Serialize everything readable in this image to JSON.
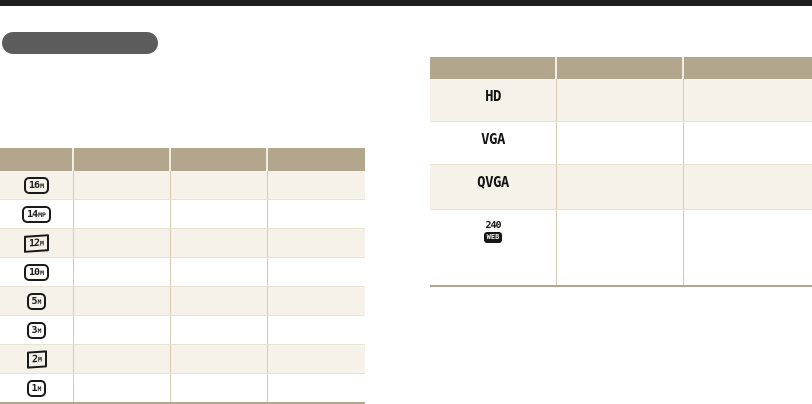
{
  "page": {
    "kind": "camera-manual-resolution-page"
  },
  "colors": {
    "top_rule": "#1f1f1f",
    "redacted_pill": "#5c5c5c",
    "table_header_tan": "#b2a78c",
    "row_cream": "#f6f2ea",
    "row_white": "#ffffff",
    "table_bottom_border": "#b2a78c",
    "icon_ink": "#1a1a1a"
  },
  "photo_table": {
    "headers": [
      "",
      "",
      "",
      ""
    ],
    "rows": [
      {
        "icon": "16M",
        "number": "16",
        "suffix": "M",
        "cells": [
          "",
          "",
          ""
        ]
      },
      {
        "icon": "14MP",
        "number": "14",
        "suffix": "MP",
        "cells": [
          "",
          "",
          ""
        ]
      },
      {
        "icon": "12M-wide",
        "number": "12",
        "suffix": "M",
        "cells": [
          "",
          "",
          ""
        ]
      },
      {
        "icon": "10M",
        "number": "10",
        "suffix": "M",
        "cells": [
          "",
          "",
          ""
        ]
      },
      {
        "icon": "5M",
        "number": "5",
        "suffix": "M",
        "cells": [
          "",
          "",
          ""
        ]
      },
      {
        "icon": "3M",
        "number": "3",
        "suffix": "M",
        "cells": [
          "",
          "",
          ""
        ]
      },
      {
        "icon": "2M-wide",
        "number": "2",
        "suffix": "M",
        "cells": [
          "",
          "",
          ""
        ]
      },
      {
        "icon": "1M",
        "number": "1",
        "suffix": "M",
        "cells": [
          "",
          "",
          ""
        ]
      }
    ]
  },
  "video_table": {
    "headers": [
      "",
      "",
      ""
    ],
    "rows": [
      {
        "label": "HD",
        "cells": [
          "",
          ""
        ]
      },
      {
        "label": "VGA",
        "cells": [
          "",
          ""
        ]
      },
      {
        "label": "QVGA",
        "cells": [
          "",
          ""
        ]
      },
      {
        "label": "240",
        "badge": "WEB",
        "cells": [
          "",
          ""
        ]
      }
    ]
  }
}
